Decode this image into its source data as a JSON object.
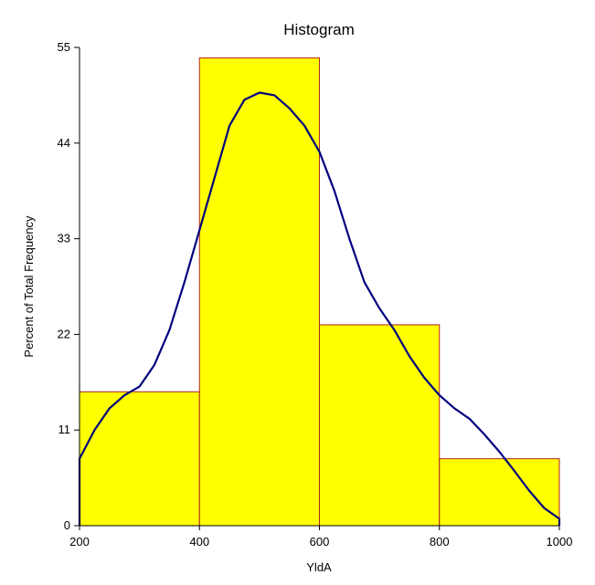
{
  "chart_data": {
    "type": "bar",
    "title": "Histogram",
    "xlabel": "YldA",
    "ylabel": "Percent of Total Frequency",
    "xlim": [
      200,
      1000
    ],
    "ylim": [
      0,
      55
    ],
    "x_ticks": [
      "200",
      "400",
      "600",
      "800",
      "1000"
    ],
    "y_ticks": [
      "0",
      "11",
      "22",
      "33",
      "44",
      "55"
    ],
    "bins": [
      {
        "start": 200,
        "end": 400,
        "value": 15.4
      },
      {
        "start": 400,
        "end": 600,
        "value": 53.8
      },
      {
        "start": 600,
        "end": 800,
        "value": 23.1
      },
      {
        "start": 800,
        "end": 1000,
        "value": 7.7
      }
    ],
    "density_curve": {
      "x": [
        200,
        225,
        250,
        275,
        300,
        325,
        350,
        375,
        400,
        425,
        450,
        475,
        500,
        525,
        550,
        575,
        600,
        625,
        650,
        675,
        700,
        725,
        750,
        775,
        800,
        825,
        850,
        875,
        900,
        925,
        950,
        975,
        1000
      ],
      "y": [
        7.7,
        11.0,
        13.5,
        15.0,
        16.0,
        18.5,
        22.5,
        28.0,
        34.0,
        40.0,
        46.0,
        49.0,
        49.8,
        49.5,
        48.0,
        46.0,
        43.0,
        38.5,
        33.0,
        28.0,
        25.0,
        22.5,
        19.5,
        17.0,
        15.0,
        13.5,
        12.3,
        10.5,
        8.5,
        6.3,
        4.0,
        2.0,
        0.8
      ]
    },
    "colors": {
      "bar_fill": "#ffff00",
      "bar_stroke": "#b22222",
      "curve": "#000080",
      "axis": "#000000"
    },
    "grid": false,
    "legend": "none"
  }
}
